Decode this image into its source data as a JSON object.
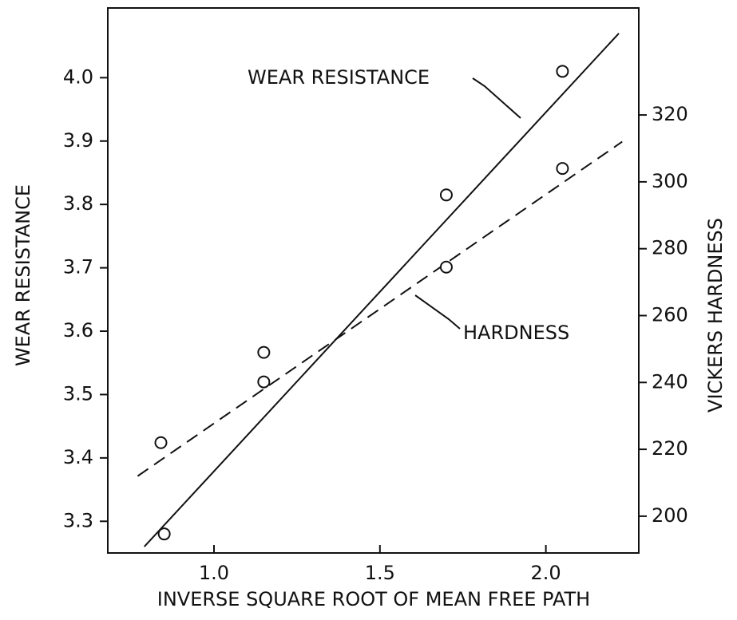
{
  "chart_data": {
    "type": "scatter",
    "xlabel": "INVERSE SQUARE ROOT OF MEAN FREE PATH",
    "ylabel": "WEAR RESISTANCE",
    "y2label": "VICKERS HARDNESS",
    "xlim": [
      0.68,
      2.28
    ],
    "ylim": [
      3.25,
      4.11
    ],
    "y2lim": [
      189,
      352
    ],
    "xticks": [
      {
        "value": 1,
        "label": "1.0"
      },
      1.5,
      {
        "value": 2,
        "label": "2.0"
      }
    ],
    "yticks": [
      3.3,
      3.4,
      3.5,
      3.6,
      3.7,
      3.8,
      3.9,
      {
        "value": 4,
        "label": "4.0"
      }
    ],
    "y2ticks": [
      200,
      220,
      240,
      260,
      280,
      300,
      320
    ],
    "series": [
      {
        "name": "WEAR RESISTANCE",
        "color": "#111",
        "line_style": "solid",
        "x": [
          0.85,
          1.15,
          1.7,
          2.05
        ],
        "values": [
          3.28,
          3.52,
          3.815,
          4.01
        ],
        "fit_x": [
          0.79,
          2.22
        ],
        "fit_values": [
          3.26,
          4.07
        ]
      },
      {
        "name": "HARDNESS",
        "color": "#111",
        "line_style": "dashed",
        "axis": "y2",
        "x": [
          0.84,
          1.15,
          1.7,
          2.05
        ],
        "values": [
          222,
          249,
          274.5,
          304
        ],
        "fit_x": [
          0.77,
          2.23
        ],
        "fit_values": [
          212,
          312
        ]
      }
    ]
  }
}
